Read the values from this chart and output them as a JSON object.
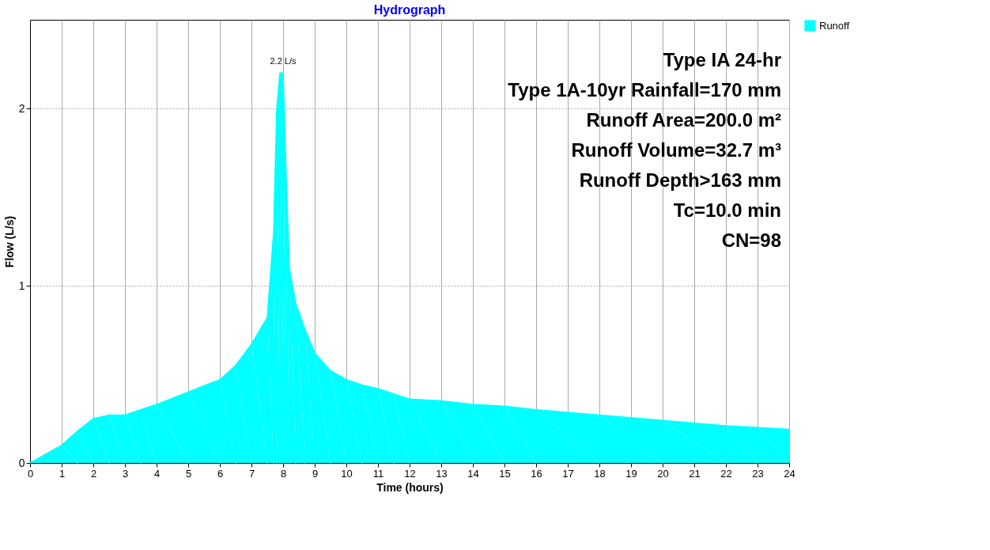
{
  "chart_data": {
    "type": "area",
    "title": "Hydrograph",
    "xlabel": "Time  (hours)",
    "ylabel": "Flow  (L/s)",
    "x": [
      0,
      1,
      1.5,
      2,
      2.5,
      3,
      3.5,
      4,
      5,
      6,
      6.5,
      7,
      7.5,
      7.7,
      7.8,
      7.9,
      8.0,
      8.1,
      8.2,
      8.4,
      8.7,
      9,
      9.5,
      10,
      10.5,
      11,
      11.5,
      12,
      13,
      14,
      15,
      16,
      18,
      20,
      22,
      23,
      24
    ],
    "series": [
      {
        "name": "Runoff",
        "color": "#00ffff",
        "values": [
          0,
          0.1,
          0.18,
          0.25,
          0.27,
          0.27,
          0.3,
          0.33,
          0.4,
          0.47,
          0.55,
          0.67,
          0.82,
          1.3,
          2.0,
          2.2,
          2.2,
          1.6,
          1.1,
          0.9,
          0.75,
          0.62,
          0.52,
          0.47,
          0.44,
          0.42,
          0.39,
          0.36,
          0.35,
          0.33,
          0.32,
          0.3,
          0.27,
          0.24,
          0.21,
          0.2,
          0.19
        ]
      }
    ],
    "xlim": [
      0,
      24
    ],
    "xticks": [
      0,
      1,
      2,
      3,
      4,
      5,
      6,
      7,
      8,
      9,
      10,
      11,
      12,
      13,
      14,
      15,
      16,
      17,
      18,
      19,
      20,
      21,
      22,
      23,
      24
    ],
    "ylim": [
      0,
      2.5
    ],
    "yticks": [
      0,
      1,
      2
    ],
    "grid": true,
    "legend": "top right",
    "annotations": [
      {
        "text": "2.2 L/s",
        "x": 8.0,
        "y": 2.2
      },
      "Type IA 24-hr",
      "Type 1A-10yr Rainfall=170 mm",
      "Runoff Area=200.0 m²",
      "Runoff Volume=32.7 m³",
      "Runoff Depth>163 mm",
      "Tc=10.0 min",
      "CN=98"
    ]
  }
}
